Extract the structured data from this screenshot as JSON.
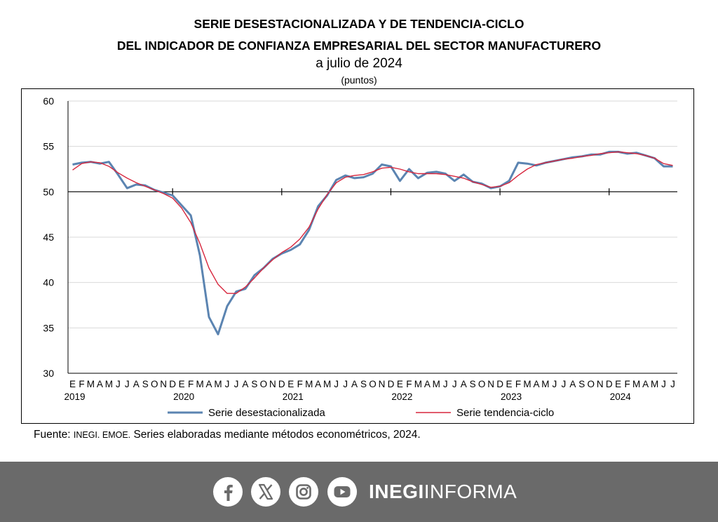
{
  "chart_data": {
    "type": "line",
    "title": "SERIE DESESTACIONALIZADA Y DE TENDENCIA-CICLO",
    "title_line2": "DEL INDICADOR DE CONFIANZA EMPRESARIAL DEL SECTOR MANUFACTURERO",
    "subtitle": "a julio de 2024",
    "units": "(puntos)",
    "ylim": [
      30,
      60
    ],
    "y_ticks": [
      30,
      35,
      40,
      45,
      50,
      55,
      60
    ],
    "reference_line": 50,
    "grid": true,
    "legend_position": "bottom",
    "month_labels": [
      "E",
      "F",
      "M",
      "A",
      "M",
      "J",
      "J",
      "A",
      "S",
      "O",
      "N",
      "D"
    ],
    "year_labels": [
      "2019",
      "2020",
      "2021",
      "2022",
      "2023",
      "2024"
    ],
    "x_start": "2019-01",
    "x_end": "2024-07",
    "series": [
      {
        "name": "Serie desestacionalizada",
        "color": "#5b84b1",
        "values": [
          53.0,
          53.2,
          53.3,
          53.1,
          53.3,
          51.9,
          50.4,
          50.8,
          50.7,
          50.2,
          49.9,
          49.6,
          48.5,
          47.4,
          43.0,
          36.2,
          34.3,
          37.4,
          39.0,
          39.3,
          40.8,
          41.6,
          42.6,
          43.2,
          43.6,
          44.2,
          45.8,
          48.4,
          49.6,
          51.3,
          51.8,
          51.5,
          51.6,
          52.0,
          53.0,
          52.8,
          51.2,
          52.5,
          51.5,
          52.1,
          52.2,
          52.0,
          51.2,
          51.9,
          51.1,
          50.9,
          50.4,
          50.6,
          51.2,
          53.2,
          53.1,
          52.9,
          53.2,
          53.4,
          53.6,
          53.8,
          53.9,
          54.1,
          54.1,
          54.4,
          54.4,
          54.2,
          54.3,
          54.0,
          53.7,
          52.8,
          52.8
        ]
      },
      {
        "name": "Serie tendencia-ciclo",
        "color": "#d7263d",
        "values": [
          52.4,
          53.1,
          53.3,
          53.2,
          52.8,
          52.1,
          51.5,
          51.0,
          50.6,
          50.2,
          49.8,
          49.3,
          48.2,
          46.6,
          44.3,
          41.6,
          39.8,
          38.8,
          38.8,
          39.5,
          40.5,
          41.6,
          42.5,
          43.3,
          43.9,
          44.8,
          46.1,
          48.1,
          49.7,
          51.0,
          51.6,
          51.8,
          51.9,
          52.2,
          52.6,
          52.7,
          52.5,
          52.2,
          52.0,
          52.0,
          52.0,
          51.9,
          51.7,
          51.5,
          51.1,
          50.8,
          50.5,
          50.6,
          51.0,
          51.8,
          52.5,
          53.0,
          53.2,
          53.4,
          53.6,
          53.7,
          53.9,
          54.0,
          54.2,
          54.3,
          54.4,
          54.3,
          54.2,
          54.0,
          53.7,
          53.1,
          52.9
        ]
      }
    ]
  },
  "source": {
    "label": "Fuente:",
    "org": "INEGI. EMOE.",
    "text": "Series elaboradas mediante métodos econométricos, 2024."
  },
  "footer": {
    "icons": [
      "facebook-icon",
      "x-icon",
      "instagram-icon",
      "youtube-icon"
    ],
    "brand_bold": "INEGI",
    "brand_rest": "INFORMA",
    "background": "#6a6a6a"
  }
}
